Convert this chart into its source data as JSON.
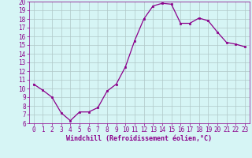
{
  "x": [
    0,
    1,
    2,
    3,
    4,
    5,
    6,
    7,
    8,
    9,
    10,
    11,
    12,
    13,
    14,
    15,
    16,
    17,
    18,
    19,
    20,
    21,
    22,
    23
  ],
  "y": [
    10.5,
    9.8,
    9.0,
    7.2,
    6.3,
    7.3,
    7.3,
    7.8,
    9.7,
    10.5,
    12.5,
    15.5,
    18.0,
    19.5,
    19.8,
    19.7,
    17.5,
    17.5,
    18.1,
    17.8,
    16.5,
    15.3,
    15.1,
    14.8
  ],
  "line_color": "#8B008B",
  "marker": "s",
  "marker_size": 2,
  "bg_color": "#d6f5f5",
  "grid_color": "#b0c8c8",
  "xlabel": "Windchill (Refroidissement éolien,°C)",
  "xlabel_color": "#8B008B",
  "tick_color": "#8B008B",
  "ylim": [
    6,
    20
  ],
  "xlim": [
    -0.5,
    23.5
  ],
  "yticks": [
    6,
    7,
    8,
    9,
    10,
    11,
    12,
    13,
    14,
    15,
    16,
    17,
    18,
    19,
    20
  ],
  "xticks": [
    0,
    1,
    2,
    3,
    4,
    5,
    6,
    7,
    8,
    9,
    10,
    11,
    12,
    13,
    14,
    15,
    16,
    17,
    18,
    19,
    20,
    21,
    22,
    23
  ],
  "tick_fontsize": 5.5,
  "xlabel_fontsize": 6.0
}
